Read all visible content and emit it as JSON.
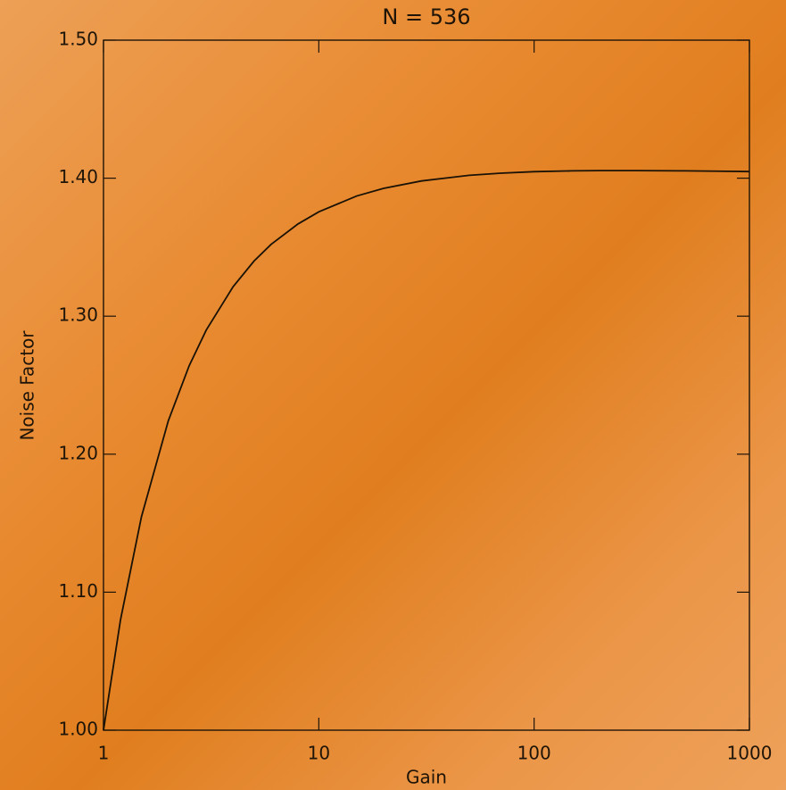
{
  "chart_data": {
    "type": "line",
    "title": "N = 536",
    "x_label": "Gain",
    "y_label": "Noise Factor",
    "x": [
      1,
      1.2,
      1.5,
      2,
      2.5,
      3,
      4,
      5,
      6,
      8,
      10,
      15,
      20,
      30,
      50,
      70,
      100,
      150,
      200,
      300,
      500,
      700,
      1000
    ],
    "series": [
      {
        "color": "#1a1206",
        "values": [
          1.0,
          1.0801,
          1.1545,
          1.2242,
          1.2641,
          1.2899,
          1.3214,
          1.3399,
          1.352,
          1.3668,
          1.3756,
          1.3871,
          1.3926,
          1.398,
          1.4021,
          1.4036,
          1.4047,
          1.4053,
          1.4055,
          1.4055,
          1.4053,
          1.4051,
          1.4048
        ]
      }
    ],
    "xlim": [
      1,
      1000
    ],
    "xticks": [
      1,
      10,
      100,
      1000
    ],
    "x_log": true,
    "ylim": [
      1.0,
      1.5
    ],
    "yticks": [
      {
        "value": 1.0,
        "label": "1.00"
      },
      {
        "value": 1.1,
        "label": "1.10"
      },
      {
        "value": 1.2,
        "label": "1.20"
      },
      {
        "value": 1.3,
        "label": "1.30"
      },
      {
        "value": 1.4,
        "label": "1.40"
      },
      {
        "value": 1.5,
        "label": "1.50"
      }
    ],
    "grid": false
  }
}
